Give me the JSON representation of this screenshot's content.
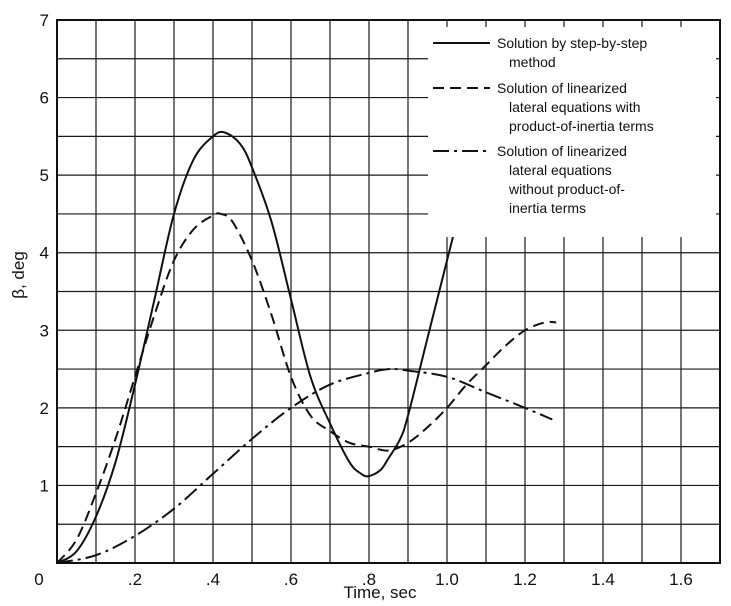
{
  "chart_data": {
    "type": "line",
    "title": "",
    "xlabel": "Time, sec",
    "ylabel": "β, deg",
    "xlim": [
      0,
      1.7
    ],
    "ylim": [
      0,
      7
    ],
    "grid": true,
    "legend_position": "top-right",
    "x_ticks": [
      {
        "value": 0,
        "label": "0"
      },
      {
        "value": 0.2,
        "label": ".2"
      },
      {
        "value": 0.4,
        "label": ".4"
      },
      {
        "value": 0.6,
        "label": ".6"
      },
      {
        "value": 0.8,
        "label": ".8"
      },
      {
        "value": 1.0,
        "label": "1.0"
      },
      {
        "value": 1.2,
        "label": "1.2"
      },
      {
        "value": 1.4,
        "label": "1.4"
      },
      {
        "value": 1.6,
        "label": "1.6"
      }
    ],
    "y_ticks": [
      {
        "value": 0,
        "label": "0"
      },
      {
        "value": 1,
        "label": "1"
      },
      {
        "value": 2,
        "label": "2"
      },
      {
        "value": 3,
        "label": "3"
      },
      {
        "value": 4,
        "label": "4"
      },
      {
        "value": 5,
        "label": "5"
      },
      {
        "value": 6,
        "label": "6"
      },
      {
        "value": 7,
        "label": "7"
      }
    ],
    "series": [
      {
        "name": "Solution by step-by-step method",
        "legend_lines": [
          "Solution by step-by-step",
          "method"
        ],
        "line_style": "solid",
        "x": [
          0,
          0.05,
          0.1,
          0.15,
          0.2,
          0.25,
          0.3,
          0.35,
          0.4,
          0.43,
          0.47,
          0.5,
          0.55,
          0.6,
          0.65,
          0.7,
          0.75,
          0.78,
          0.8,
          0.83,
          0.85,
          0.88,
          0.9,
          0.95,
          1.0,
          1.05
        ],
        "y": [
          0,
          0.15,
          0.6,
          1.3,
          2.3,
          3.4,
          4.5,
          5.2,
          5.5,
          5.55,
          5.4,
          5.1,
          4.4,
          3.4,
          2.4,
          1.8,
          1.3,
          1.15,
          1.12,
          1.2,
          1.35,
          1.6,
          1.9,
          2.9,
          3.9,
          4.9
        ]
      },
      {
        "name": "Solution of linearized lateral equations with product-of-inertia terms",
        "legend_lines": [
          "Solution of linearized",
          "lateral equations with",
          "product-of-inertia terms"
        ],
        "line_style": "dashed",
        "x": [
          0,
          0.05,
          0.1,
          0.15,
          0.2,
          0.25,
          0.3,
          0.35,
          0.4,
          0.42,
          0.45,
          0.5,
          0.55,
          0.6,
          0.65,
          0.7,
          0.75,
          0.8,
          0.85,
          0.9,
          0.95,
          1.0,
          1.05,
          1.1,
          1.15,
          1.2,
          1.25,
          1.28
        ],
        "y": [
          0,
          0.3,
          0.9,
          1.6,
          2.4,
          3.2,
          3.9,
          4.3,
          4.48,
          4.5,
          4.4,
          3.9,
          3.2,
          2.4,
          1.9,
          1.7,
          1.55,
          1.5,
          1.45,
          1.55,
          1.75,
          2.0,
          2.3,
          2.55,
          2.8,
          3.0,
          3.1,
          3.1
        ]
      },
      {
        "name": "Solution of linearized lateral equations without product-of-inertia terms",
        "legend_lines": [
          "Solution of linearized",
          "lateral equations",
          "without product-of-",
          "inertia terms"
        ],
        "line_style": "dash-dot",
        "x": [
          0,
          0.1,
          0.2,
          0.3,
          0.4,
          0.5,
          0.6,
          0.7,
          0.8,
          0.85,
          0.9,
          1.0,
          1.1,
          1.2,
          1.27
        ],
        "y": [
          0,
          0.1,
          0.35,
          0.7,
          1.15,
          1.6,
          2.0,
          2.3,
          2.45,
          2.5,
          2.48,
          2.4,
          2.2,
          2.0,
          1.85
        ]
      }
    ]
  }
}
